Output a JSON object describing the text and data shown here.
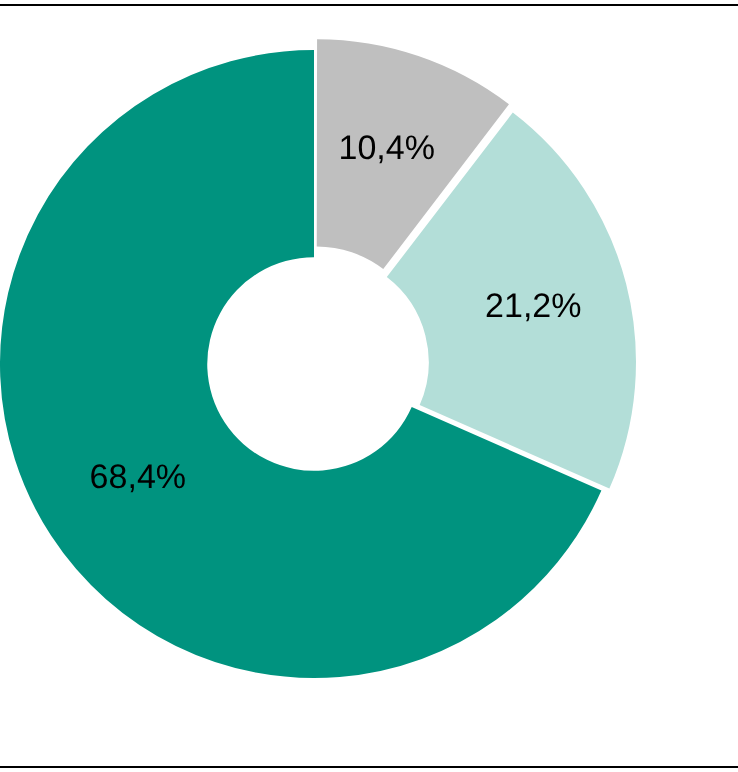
{
  "chart_data": {
    "type": "donut",
    "categories": [
      null,
      null,
      null
    ],
    "values": [
      10.4,
      21.2,
      68.4
    ],
    "colors": [
      "#bfbfbf",
      "#b3ded8",
      "#00937f"
    ],
    "value_labels": [
      "10,4%",
      "21,2%",
      "68,4%"
    ]
  }
}
